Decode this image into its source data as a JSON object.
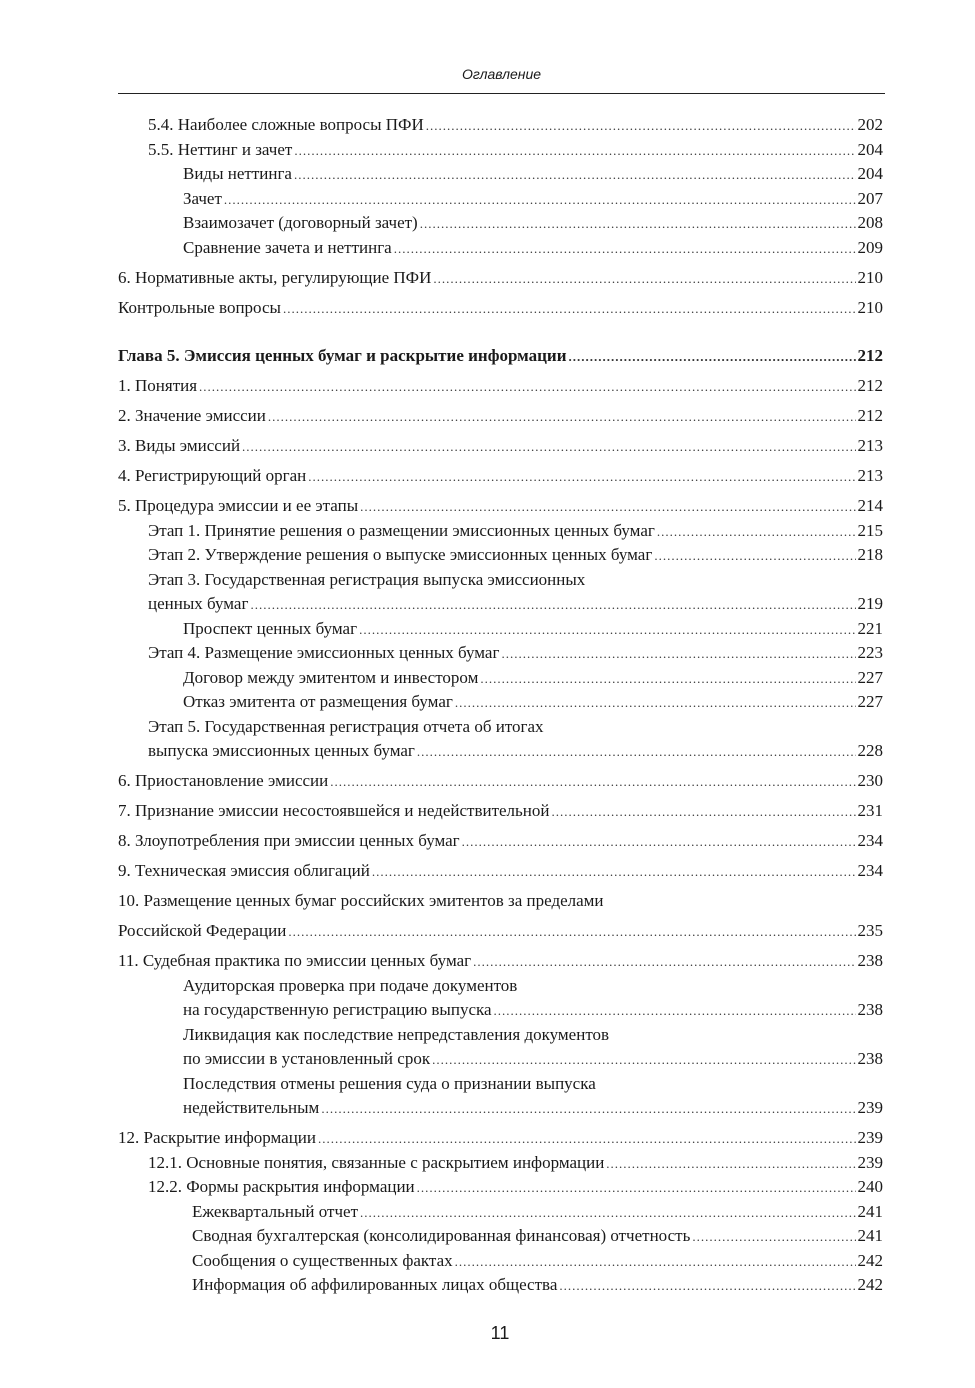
{
  "running_head": "Оглавление",
  "page_number": "11",
  "toc": [
    {
      "level": 1,
      "title": "5.4. Наиболее сложные вопросы ПФИ",
      "page": "202"
    },
    {
      "level": 1,
      "title": "5.5. Неттинг и зачет",
      "page": "204"
    },
    {
      "level": 2,
      "title": "Виды неттинга",
      "page": "204"
    },
    {
      "level": 2,
      "title": "Зачет",
      "page": "207"
    },
    {
      "level": 2,
      "title": "Взаимозачет (договорный зачет)",
      "page": "208"
    },
    {
      "level": 2,
      "title": "Сравнение зачета и неттинга",
      "page": "209"
    },
    {
      "level": 0,
      "title": "6. Нормативные акты, регулирующие ПФИ",
      "page": "210"
    },
    {
      "level": 0,
      "title": "Контрольные вопросы",
      "page": "210"
    },
    {
      "level": 0,
      "chapter": true,
      "title": "Глава 5. Эмиссия ценных бумаг и раскрытие информации",
      "page": "212"
    },
    {
      "level": 0,
      "title": "1. Понятия",
      "page": "212"
    },
    {
      "level": 0,
      "title": "2. Значение эмиссии",
      "page": "212"
    },
    {
      "level": 0,
      "title": "3. Виды эмиссий",
      "page": "213"
    },
    {
      "level": 0,
      "title": "4. Регистрирующий орган",
      "page": "213"
    },
    {
      "level": 0,
      "title": "5. Процедура эмиссии и ее этапы",
      "page": "214"
    },
    {
      "level": 1,
      "title": "Этап 1. Принятие решения о размещении эмиссионных ценных бумаг",
      "page": "215"
    },
    {
      "level": 1,
      "title": "Этап 2. Утверждение решения о выпуске эмиссионных ценных бумаг",
      "page": "218"
    },
    {
      "level": 1,
      "title": "Этап 3. Государственная регистрация выпуска эмиссионных",
      "cont": "ценных бумаг",
      "page": "219"
    },
    {
      "level": 2,
      "title": "Проспект ценных бумаг",
      "page": "221"
    },
    {
      "level": 1,
      "title": "Этап 4. Размещение эмиссионных ценных бумаг",
      "page": "223"
    },
    {
      "level": 2,
      "title": "Договор между эмитентом и инвестором",
      "page": "227"
    },
    {
      "level": 2,
      "title": "Отказ эмитента от размещения бумаг",
      "page": "227"
    },
    {
      "level": 1,
      "title": "Этап 5. Государственная регистрация отчета об итогах",
      "cont": "выпуска эмиссионных ценных бумаг",
      "page": "228"
    },
    {
      "level": 0,
      "title": "6. Приостановление эмиссии",
      "page": "230"
    },
    {
      "level": 0,
      "title": "7. Признание эмиссии несостоявшейся и недействительной",
      "page": "231"
    },
    {
      "level": 0,
      "title": "8. Злоупотребления при эмиссии ценных бумаг",
      "page": "234"
    },
    {
      "level": 0,
      "title": "9. Техническая эмиссия облигаций",
      "page": "234"
    },
    {
      "level": 0,
      "title": "10. Размещение ценных бумаг российских эмитентов за пределами",
      "cont": "Российской Федерации",
      "page": "235"
    },
    {
      "level": 0,
      "title": "11. Судебная практика по эмиссии ценных бумаг",
      "page": "238"
    },
    {
      "level": 2,
      "title": "Аудиторская проверка при подаче документов",
      "cont": "на государственную регистрацию выпуска",
      "page": "238"
    },
    {
      "level": 2,
      "title": "Ликвидация как последствие непредставления документов",
      "cont": "по эмиссии в установленный срок",
      "page": "238"
    },
    {
      "level": 2,
      "title": "Последствия отмены решения суда о признании выпуска",
      "cont": "недействительным",
      "page": "239"
    },
    {
      "level": 0,
      "title": "12. Раскрытие информации",
      "page": "239"
    },
    {
      "level": 1,
      "title": "12.1. Основные понятия, связанные с раскрытием информации",
      "page": "239"
    },
    {
      "level": 1,
      "title": "12.2. Формы раскрытия информации",
      "page": "240"
    },
    {
      "level": 3,
      "title": "Ежеквартальный отчет",
      "page": "241"
    },
    {
      "level": 3,
      "title": "Сводная бухгалтерская (консолидированная финансовая) отчетность",
      "page": "241"
    },
    {
      "level": 3,
      "title": "Сообщения о существенных фактах",
      "page": "242"
    },
    {
      "level": 3,
      "title": "Информация об аффилированных лицах общества",
      "page": "242"
    }
  ]
}
